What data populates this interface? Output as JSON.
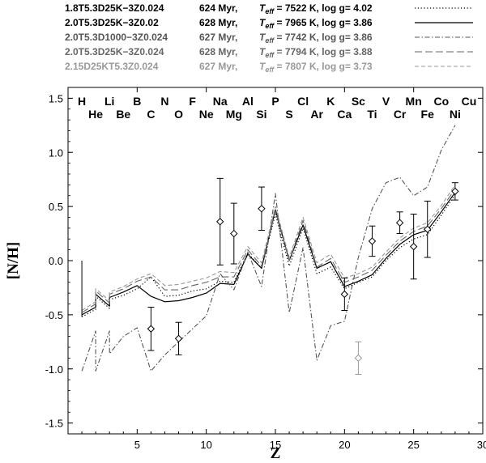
{
  "chart_data": {
    "type": "line",
    "xlabel": "Z",
    "ylabel": "[N/H]",
    "xlim": [
      0,
      30
    ],
    "ylim": [
      -1.6,
      1.6
    ],
    "x_ticks": [
      5,
      10,
      15,
      20,
      25,
      30
    ],
    "y_ticks": [
      -1.5,
      -1.0,
      -0.5,
      0.0,
      0.5,
      1.0,
      1.5
    ],
    "grid": false,
    "legend_position": "top",
    "legend": [
      {
        "model": "1.8T5.3D25K−3Z0.024",
        "age": "624 Myr,",
        "teff_prefix": "T",
        "teff_sub": "eff",
        "teff_value": "= 7522 K, log g= 4.02",
        "color": "#000000",
        "dash": "1.2,2.6",
        "width": 1.2
      },
      {
        "model": "2.0T5.3D25K−3Z0.02",
        "age": "628 Myr,",
        "teff_prefix": "T",
        "teff_sub": "eff",
        "teff_value": "= 7965 K, log g= 3.86",
        "color": "#000000",
        "dash": "",
        "width": 1.2
      },
      {
        "model": "2.0T5.3D1000−3Z0.024",
        "age": "627 Myr,",
        "teff_prefix": "T",
        "teff_sub": "eff",
        "teff_value": "= 7742 K, log g= 3.86",
        "color": "#555555",
        "dash": "6,2.5,1.5,2.5",
        "width": 1.1
      },
      {
        "model": "2.0T5.3D25K−3Z0.024",
        "age": "628 Myr,",
        "teff_prefix": "T",
        "teff_sub": "eff",
        "teff_value": "= 7794 K, log g= 3.88",
        "color": "#666666",
        "dash": "9,4",
        "width": 1.1
      },
      {
        "model": "2.15D25KT5.3Z0.024",
        "age": "627 Myr,",
        "teff_prefix": "T",
        "teff_sub": "eff",
        "teff_value": "= 7807 K, log g= 3.73",
        "color": "#999999",
        "dash": "5,3",
        "width": 1.1
      }
    ],
    "elements_top": [
      {
        "sym": "H",
        "z": 1
      },
      {
        "sym": "Li",
        "z": 3
      },
      {
        "sym": "B",
        "z": 5
      },
      {
        "sym": "N",
        "z": 7
      },
      {
        "sym": "F",
        "z": 9
      },
      {
        "sym": "Na",
        "z": 11
      },
      {
        "sym": "Al",
        "z": 13
      },
      {
        "sym": "P",
        "z": 15
      },
      {
        "sym": "Cl",
        "z": 17
      },
      {
        "sym": "K",
        "z": 19
      },
      {
        "sym": "Sc",
        "z": 21
      },
      {
        "sym": "V",
        "z": 23
      },
      {
        "sym": "Mn",
        "z": 25
      },
      {
        "sym": "Co",
        "z": 27
      },
      {
        "sym": "Cu",
        "z": 29
      }
    ],
    "elements_bottom": [
      {
        "sym": "He",
        "z": 2
      },
      {
        "sym": "Be",
        "z": 4
      },
      {
        "sym": "C",
        "z": 6
      },
      {
        "sym": "O",
        "z": 8
      },
      {
        "sym": "Ne",
        "z": 10
      },
      {
        "sym": "Mg",
        "z": 12
      },
      {
        "sym": "Si",
        "z": 14
      },
      {
        "sym": "S",
        "z": 16
      },
      {
        "sym": "Ar",
        "z": 18
      },
      {
        "sym": "Ca",
        "z": 20
      },
      {
        "sym": "Ti",
        "z": 22
      },
      {
        "sym": "Cr",
        "z": 24
      },
      {
        "sym": "Fe",
        "z": 26
      },
      {
        "sym": "Ni",
        "z": 28
      }
    ],
    "series": [
      {
        "legend_index": 0,
        "x": [
          1,
          2,
          2,
          3,
          3,
          4,
          5,
          6,
          7,
          8,
          9,
          10,
          11,
          12,
          13,
          14,
          15,
          16,
          17,
          18,
          19,
          20,
          21,
          22,
          23,
          24,
          25,
          26,
          27,
          28
        ],
        "y": [
          -0.52,
          -0.45,
          -0.33,
          -0.44,
          -0.36,
          -0.32,
          -0.26,
          -0.15,
          -0.33,
          -0.32,
          -0.28,
          -0.26,
          -0.19,
          -0.2,
          0.07,
          -0.07,
          0.43,
          -0.05,
          0.3,
          -0.12,
          -0.06,
          -0.26,
          -0.2,
          -0.15,
          0.0,
          0.12,
          0.2,
          0.24,
          0.42,
          0.61
        ]
      },
      {
        "legend_index": 1,
        "x": [
          1,
          2,
          2,
          3,
          3,
          4,
          5,
          6,
          7,
          8,
          9,
          10,
          11,
          12,
          13,
          14,
          15,
          16,
          17,
          18,
          19,
          20,
          21,
          22,
          23,
          24,
          25,
          26,
          27,
          28
        ],
        "y": [
          -0.5,
          -0.43,
          -0.31,
          -0.42,
          -0.34,
          -0.29,
          -0.23,
          -0.33,
          -0.38,
          -0.37,
          -0.34,
          -0.3,
          -0.21,
          -0.22,
          0.06,
          -0.07,
          0.47,
          0.0,
          0.33,
          -0.07,
          -0.01,
          -0.24,
          -0.19,
          -0.13,
          0.02,
          0.15,
          0.24,
          0.28,
          0.45,
          0.63
        ]
      },
      {
        "legend_index": 2,
        "x": [
          1,
          2,
          2,
          3,
          3,
          4,
          5,
          6,
          7,
          8,
          9,
          10,
          11,
          12,
          13,
          14,
          15,
          16,
          17,
          18,
          19,
          20,
          21,
          22,
          23,
          24,
          25,
          26,
          27,
          28
        ],
        "y": [
          -1.02,
          -0.65,
          -1.02,
          -0.65,
          -0.86,
          -0.7,
          -0.62,
          -1.02,
          -0.87,
          -0.75,
          -0.63,
          -0.51,
          -0.12,
          -0.27,
          0.08,
          -0.24,
          0.62,
          -0.48,
          0.12,
          -0.92,
          -0.6,
          -0.56,
          0.03,
          0.48,
          0.72,
          0.77,
          0.6,
          0.68,
          1.02,
          1.25
        ]
      },
      {
        "legend_index": 3,
        "x": [
          1,
          2,
          2,
          3,
          3,
          4,
          5,
          6,
          7,
          8,
          9,
          10,
          11,
          12,
          13,
          14,
          15,
          16,
          17,
          18,
          19,
          20,
          21,
          22,
          23,
          24,
          25,
          26,
          27,
          28
        ],
        "y": [
          -0.48,
          -0.4,
          -0.28,
          -0.39,
          -0.31,
          -0.26,
          -0.19,
          -0.15,
          -0.27,
          -0.27,
          -0.23,
          -0.2,
          -0.15,
          -0.15,
          0.1,
          -0.05,
          0.46,
          0.0,
          0.37,
          -0.06,
          0.02,
          -0.2,
          -0.15,
          -0.09,
          0.05,
          0.18,
          0.27,
          0.32,
          0.48,
          0.66
        ]
      },
      {
        "legend_index": 4,
        "x": [
          1,
          2,
          2,
          3,
          3,
          4,
          5,
          6,
          7,
          8,
          9,
          10,
          11,
          12,
          13,
          14,
          15,
          16,
          17,
          18,
          19,
          20,
          21,
          22,
          23,
          24,
          25,
          26,
          27,
          28
        ],
        "y": [
          -0.46,
          -0.38,
          -0.26,
          -0.37,
          -0.29,
          -0.24,
          -0.17,
          -0.12,
          -0.23,
          -0.22,
          -0.19,
          -0.16,
          -0.1,
          -0.11,
          0.13,
          -0.02,
          0.5,
          0.03,
          0.4,
          -0.02,
          0.06,
          -0.16,
          -0.12,
          -0.06,
          0.08,
          0.21,
          0.3,
          0.35,
          0.51,
          0.7
        ]
      }
    ],
    "observed": [
      {
        "z": 6,
        "y": -0.63,
        "err": 0.2,
        "color": "#000000"
      },
      {
        "z": 8,
        "y": -0.72,
        "err": 0.15,
        "color": "#000000"
      },
      {
        "z": 11,
        "y": 0.36,
        "err": 0.4,
        "color": "#000000"
      },
      {
        "z": 12,
        "y": 0.25,
        "err": 0.28,
        "color": "#000000"
      },
      {
        "z": 14,
        "y": 0.48,
        "err": 0.2,
        "color": "#000000"
      },
      {
        "z": 20,
        "y": -0.31,
        "err": 0.15,
        "color": "#000000"
      },
      {
        "z": 21,
        "y": -0.9,
        "err": 0.15,
        "color": "#999999"
      },
      {
        "z": 22,
        "y": 0.18,
        "err": 0.14,
        "color": "#000000"
      },
      {
        "z": 24,
        "y": 0.35,
        "err": 0.1,
        "color": "#000000"
      },
      {
        "z": 25,
        "y": 0.13,
        "err": 0.3,
        "color": "#000000"
      },
      {
        "z": 26,
        "y": 0.29,
        "err": 0.26,
        "color": "#000000"
      },
      {
        "z": 28,
        "y": 0.64,
        "err": 0.08,
        "color": "#000000"
      }
    ],
    "h_marker": {
      "z": 1,
      "y_top": 0.0,
      "y_bottom": -0.52
    }
  }
}
